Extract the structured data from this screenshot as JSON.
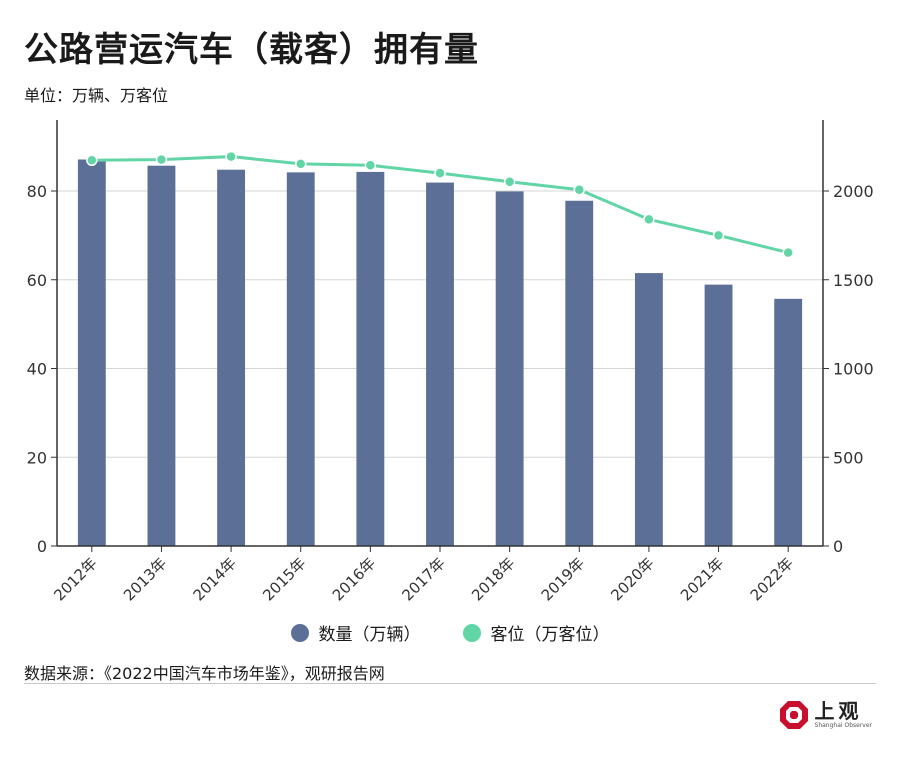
{
  "title": "公路营运汽车（载客）拥有量",
  "unit": "单位：万辆、万客位",
  "source": "数据来源：《2022中国汽车市场年鉴》，观研报告网",
  "logo": {
    "cn": "上观",
    "en": "Shanghai Observer"
  },
  "colors": {
    "bar": "#5b6f97",
    "line": "#62d5a6",
    "grid": "#d6d6d6",
    "axis": "#333333"
  },
  "chart_data": {
    "type": "bar",
    "categories": [
      "2012年",
      "2013年",
      "2014年",
      "2015年",
      "2016年",
      "2017年",
      "2018年",
      "2019年",
      "2020年",
      "2021年",
      "2022年"
    ],
    "series": [
      {
        "name": "数量（万辆）",
        "type": "bar",
        "axis": "left",
        "values": [
          87.1,
          85.7,
          84.8,
          84.2,
          84.3,
          81.9,
          79.9,
          77.8,
          61.5,
          58.9,
          55.7
        ]
      },
      {
        "name": "客位（万客位）",
        "type": "line",
        "axis": "right",
        "values": [
          2173,
          2177,
          2194,
          2153,
          2145,
          2101,
          2052,
          2007,
          1840,
          1750,
          1653
        ]
      }
    ],
    "y_left": {
      "lim": [
        0,
        96
      ],
      "ticks": [
        0,
        20,
        40,
        60,
        80
      ]
    },
    "y_right": {
      "lim": [
        0,
        2400
      ],
      "ticks": [
        0,
        500,
        1000,
        1500,
        2000
      ]
    },
    "grid": true,
    "legend": "bottom-center"
  }
}
